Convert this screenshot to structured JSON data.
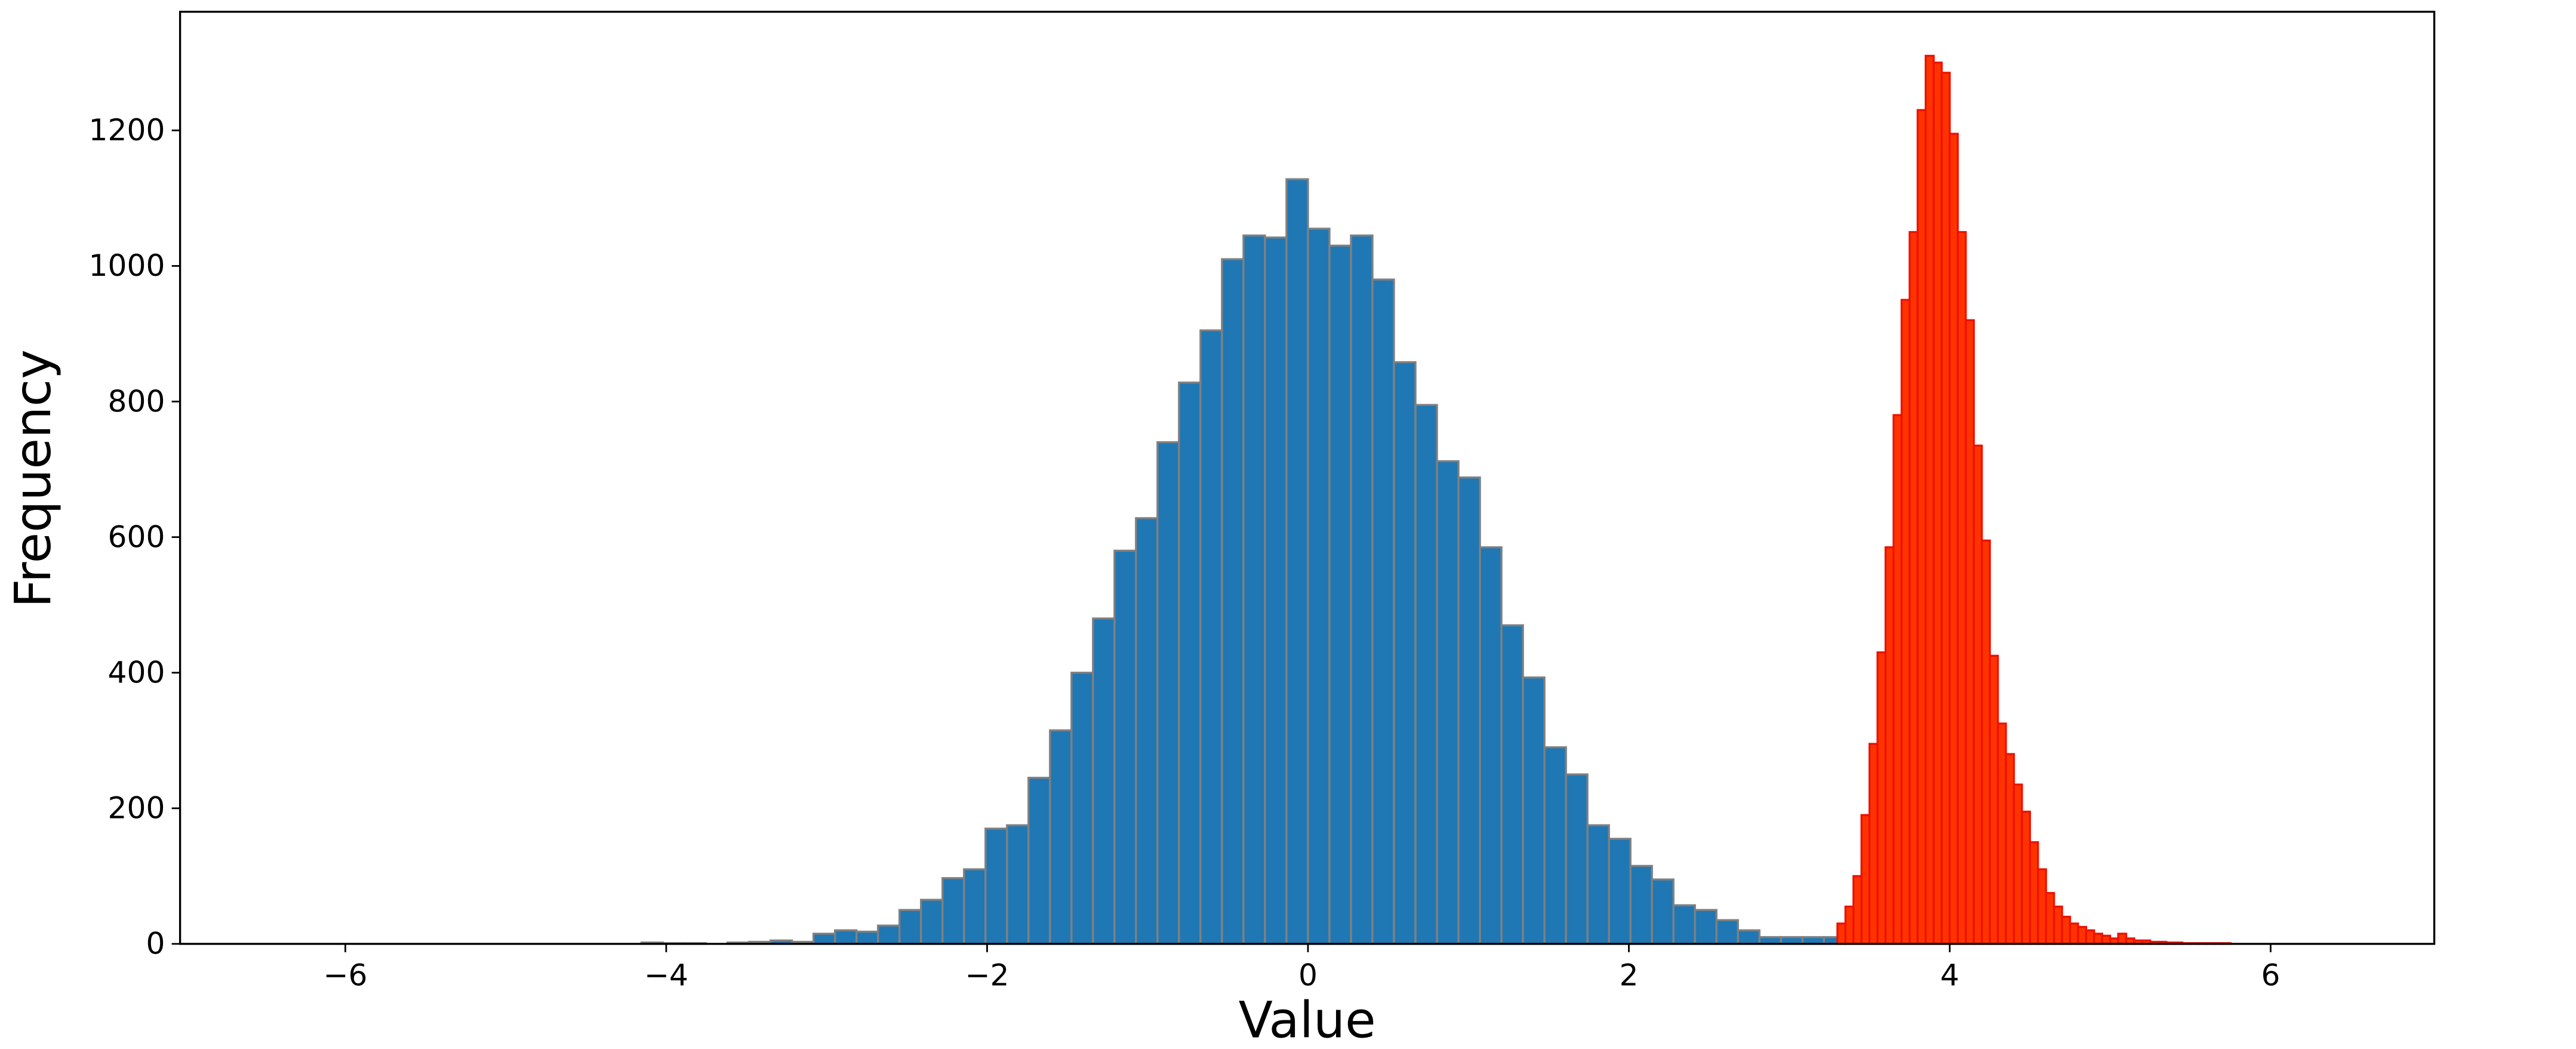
{
  "chart_data": {
    "type": "histogram",
    "xlabel": "Value",
    "ylabel": "Frequency",
    "xlim": [
      -7.03,
      7.02
    ],
    "ylim": [
      0,
      1375
    ],
    "xticks": [
      {
        "value": -6,
        "label": "−6"
      },
      {
        "value": -4,
        "label": "−4"
      },
      {
        "value": -2,
        "label": "−2"
      },
      0,
      2,
      4,
      6
    ],
    "yticks": [
      0,
      200,
      400,
      600,
      800,
      1000,
      1200
    ],
    "grid": false,
    "series": [
      {
        "color": "#1f77b4",
        "edgecolor": "#808080",
        "bins": [
          -4.154,
          -4.02,
          -3.886,
          -3.752,
          -3.618,
          -3.484,
          -3.35,
          -3.216,
          -3.082,
          -2.948,
          -2.814,
          -2.68,
          -2.546,
          -2.412,
          -2.278,
          -2.144,
          -2.01,
          -1.876,
          -1.742,
          -1.608,
          -1.474,
          -1.34,
          -1.206,
          -1.072,
          -0.938,
          -0.804,
          -0.67,
          -0.536,
          -0.402,
          -0.268,
          -0.134,
          0,
          0.134,
          0.268,
          0.402,
          0.536,
          0.67,
          0.804,
          0.938,
          1.072,
          1.206,
          1.34,
          1.474,
          1.608,
          1.742,
          1.876,
          2.01,
          2.144,
          2.278,
          2.412,
          2.546,
          2.68,
          2.814,
          2.948,
          3.082,
          3.216,
          3.35
        ],
        "values": [
          2,
          1,
          1,
          0,
          2,
          3,
          5,
          3,
          15,
          20,
          18,
          27,
          50,
          65,
          97,
          110,
          170,
          175,
          245,
          315,
          400,
          480,
          580,
          628,
          740,
          828,
          905,
          1010,
          1045,
          1042,
          1128,
          1055,
          1030,
          1045,
          980,
          858,
          795,
          712,
          688,
          585,
          470,
          393,
          290,
          250,
          175,
          155,
          115,
          95,
          57,
          50,
          35,
          20,
          10,
          10,
          10,
          10
        ]
      },
      {
        "color": "#ff3300",
        "edgecolor": "#ee1100",
        "bins": [
          3.3,
          3.35,
          3.4,
          3.45,
          3.5,
          3.55,
          3.6,
          3.65,
          3.7,
          3.75,
          3.8,
          3.85,
          3.9,
          3.95,
          4.0,
          4.05,
          4.1,
          4.15,
          4.2,
          4.25,
          4.3,
          4.35,
          4.4,
          4.45,
          4.5,
          4.55,
          4.6,
          4.65,
          4.7,
          4.75,
          4.8,
          4.85,
          4.9,
          4.95,
          5.0,
          5.05,
          5.1,
          5.15,
          5.2,
          5.25,
          5.3,
          5.35,
          5.4,
          5.45,
          5.5,
          5.55,
          5.6,
          5.65,
          5.7,
          5.75,
          5.8
        ],
        "values": [
          30,
          55,
          100,
          190,
          295,
          430,
          585,
          780,
          950,
          1050,
          1230,
          1310,
          1300,
          1285,
          1195,
          1050,
          920,
          735,
          595,
          425,
          325,
          280,
          235,
          195,
          150,
          110,
          75,
          55,
          40,
          30,
          25,
          20,
          15,
          12,
          8,
          15,
          8,
          5,
          5,
          3,
          3,
          2,
          2,
          1,
          1,
          1,
          1,
          1,
          1,
          0
        ]
      }
    ]
  }
}
